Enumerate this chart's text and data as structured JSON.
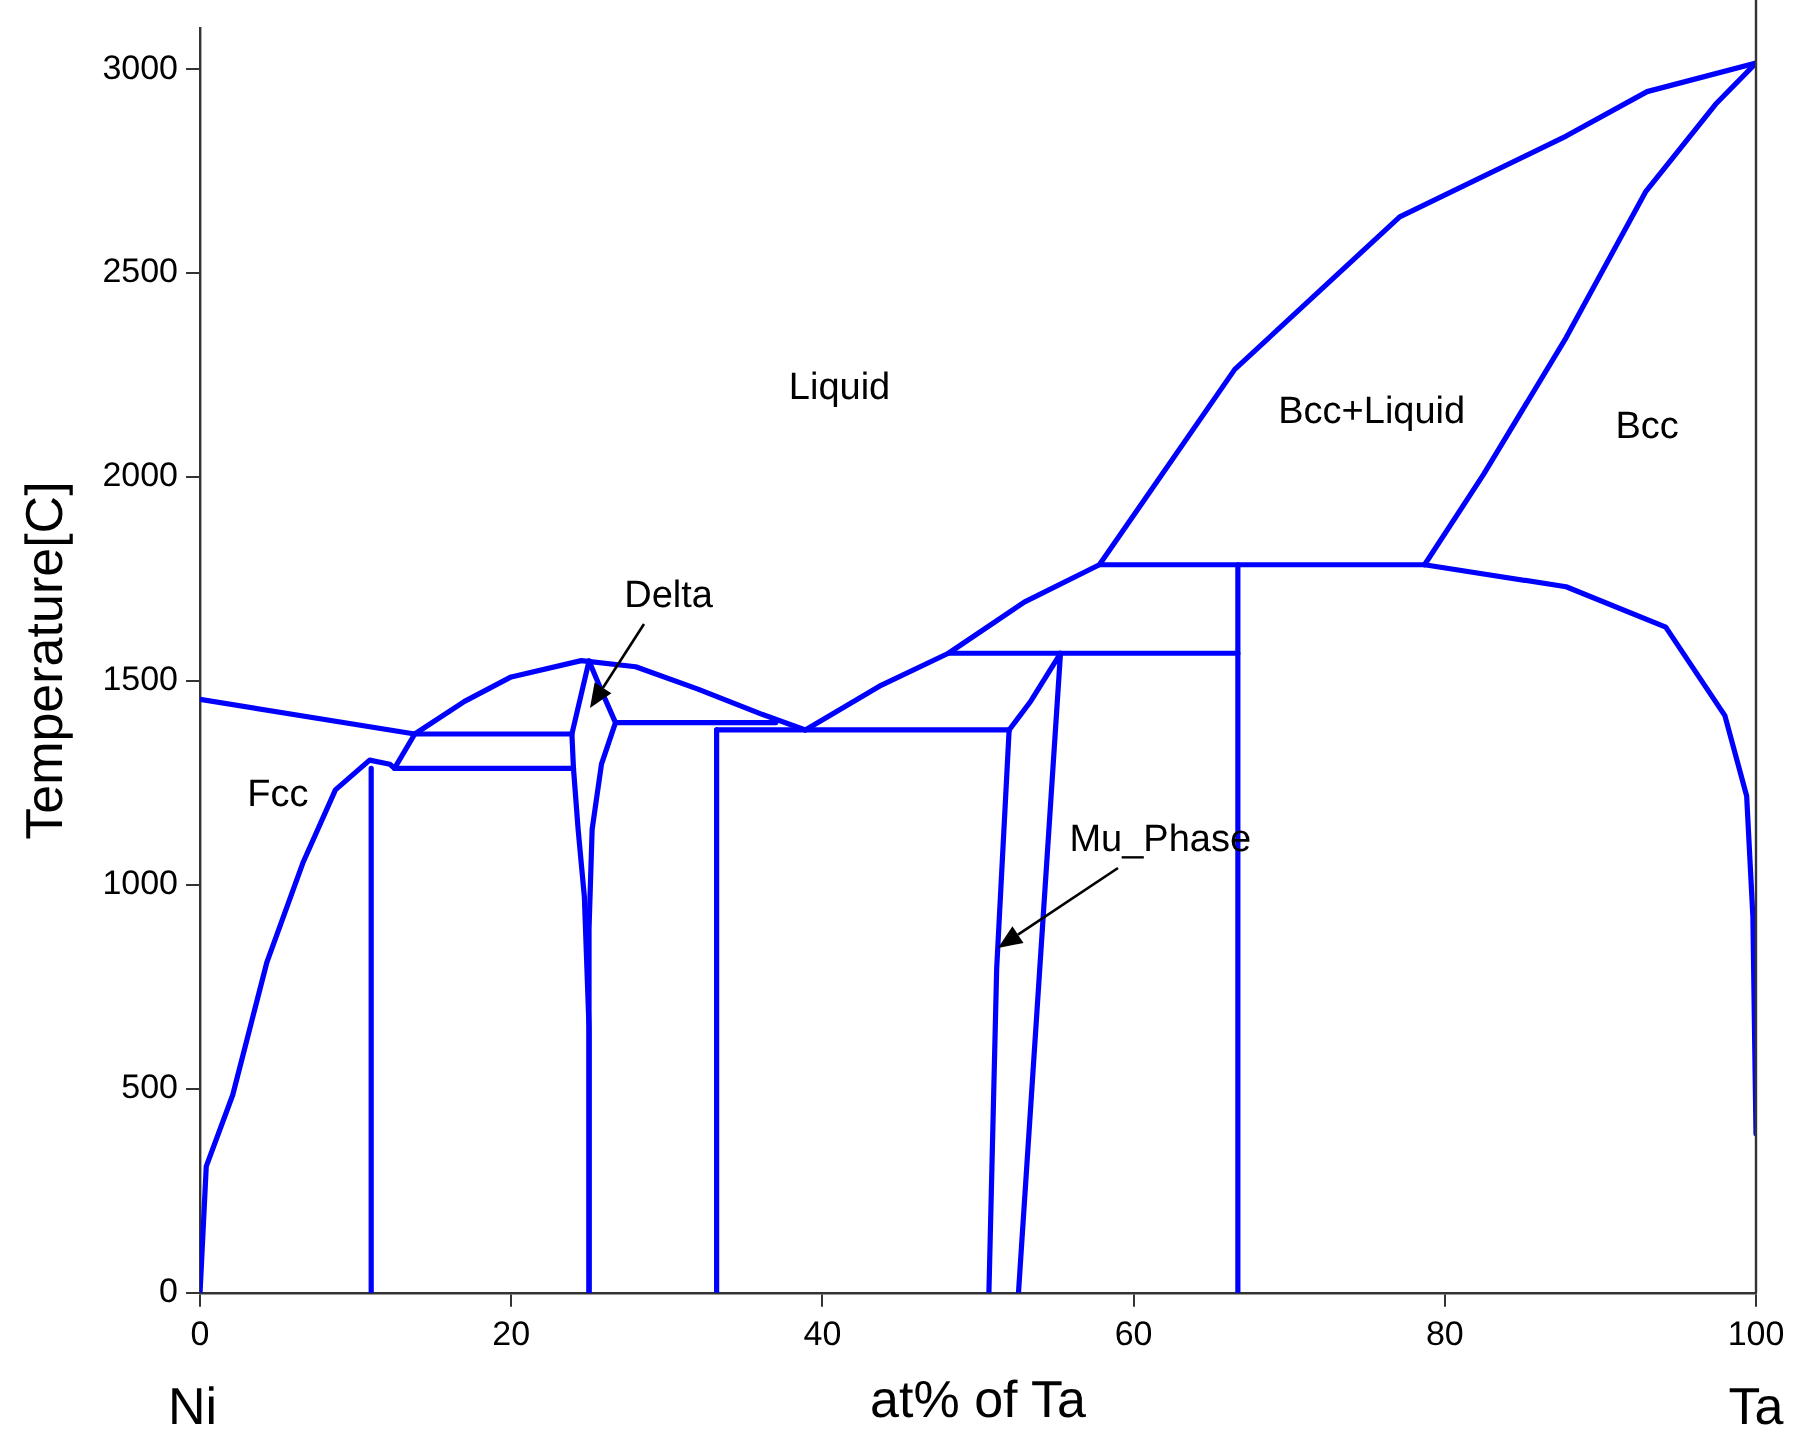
{
  "chart_data": {
    "type": "line",
    "xlabel": "at% of Ta",
    "ylabel": "Temperature[C]",
    "xlim": [
      0,
      100
    ],
    "xticks": [
      0,
      20,
      40,
      60,
      80,
      100
    ],
    "ylim": [
      0,
      3100
    ],
    "yticks": [
      0,
      500,
      1000,
      1500,
      2000,
      2500,
      3000
    ],
    "grid": false,
    "legend": false,
    "marker": "none",
    "line_style": "solid",
    "series": [
      {
        "color": "#0000ff",
        "x": [
          0,
          13.8,
          23.9
        ],
        "values": [
          1455,
          1370,
          1370
        ]
      },
      {
        "color": "#0000ff",
        "x": [
          13.8,
          17,
          20,
          24.5,
          28,
          32,
          36,
          38.9
        ],
        "values": [
          1370,
          1450,
          1510,
          1550,
          1535,
          1480,
          1420,
          1380
        ]
      },
      {
        "color": "#0000ff",
        "x": [
          38.9,
          43.8,
          48.1,
          53,
          57.8,
          66.5,
          77.1,
          87.8,
          93,
          100
        ],
        "values": [
          1380,
          1490,
          1568,
          1694,
          1785,
          2264,
          2638,
          2836,
          2945,
          3015
        ]
      },
      {
        "color": "#0000ff",
        "x": [
          78.7,
          82.5,
          87.8,
          92.9,
          97.4,
          100
        ],
        "values": [
          1785,
          2007,
          2342,
          2699,
          2914,
          3015
        ]
      },
      {
        "color": "#0000ff",
        "x": [
          57.8,
          78.7,
          87.8,
          94.2,
          98,
          99.4,
          99.8,
          100
        ],
        "values": [
          1785,
          1785,
          1731,
          1632,
          1415,
          1218,
          922,
          390
        ]
      },
      {
        "color": "#0000ff",
        "x": [
          66.7,
          66.7
        ],
        "values": [
          0,
          1785
        ]
      },
      {
        "color": "#0000ff",
        "x": [
          48.1,
          66.7
        ],
        "values": [
          1568,
          1568
        ]
      },
      {
        "color": "#0000ff",
        "x": [
          52,
          51.2,
          50.7
        ],
        "values": [
          1380,
          796,
          0
        ]
      },
      {
        "color": "#0000ff",
        "x": [
          52,
          53.4,
          55.3,
          52.6
        ],
        "values": [
          1380,
          1451,
          1568,
          0
        ]
      },
      {
        "color": "#0000ff",
        "x": [
          33.2,
          52
        ],
        "values": [
          1380,
          1380
        ]
      },
      {
        "color": "#0000ff",
        "x": [
          33.2,
          33.2
        ],
        "values": [
          0,
          1380
        ]
      },
      {
        "color": "#0000ff",
        "x": [
          26.7,
          37
        ],
        "values": [
          1398,
          1398
        ]
      },
      {
        "color": "#0000ff",
        "x": [
          25,
          23.9,
          24,
          24.3,
          24.7,
          25,
          25
        ],
        "values": [
          1549,
          1370,
          1286,
          1136,
          971,
          650,
          0
        ]
      },
      {
        "color": "#0000ff",
        "x": [
          25,
          25.8,
          26.7,
          25.8,
          25.2,
          25,
          25
        ],
        "values": [
          1549,
          1476,
          1398,
          1296,
          1136,
          893,
          0
        ]
      },
      {
        "color": "#0000ff",
        "x": [
          12.5,
          24
        ],
        "values": [
          1286,
          1286
        ]
      },
      {
        "color": "#0000ff",
        "x": [
          13.8,
          12.5
        ],
        "values": [
          1370,
          1286
        ]
      },
      {
        "color": "#0000ff",
        "x": [
          0,
          0.4,
          2.1,
          4.3,
          6.6,
          8.7,
          10.9,
          12.2,
          12.5
        ],
        "values": [
          0,
          310,
          485,
          811,
          1053,
          1233,
          1306,
          1296,
          1286
        ]
      },
      {
        "color": "#0000ff",
        "x": [
          11,
          11
        ],
        "values": [
          0,
          1286
        ]
      }
    ],
    "annotations": [
      "Liquid",
      "Bcc+Liquid",
      "Bcc",
      "Fcc",
      {
        "text": "Delta",
        "x": 25.1,
        "y": 1432
      },
      {
        "text": "Mu_Phase",
        "x": 51.3,
        "y": 845
      },
      "Ni",
      "Ta"
    ]
  }
}
